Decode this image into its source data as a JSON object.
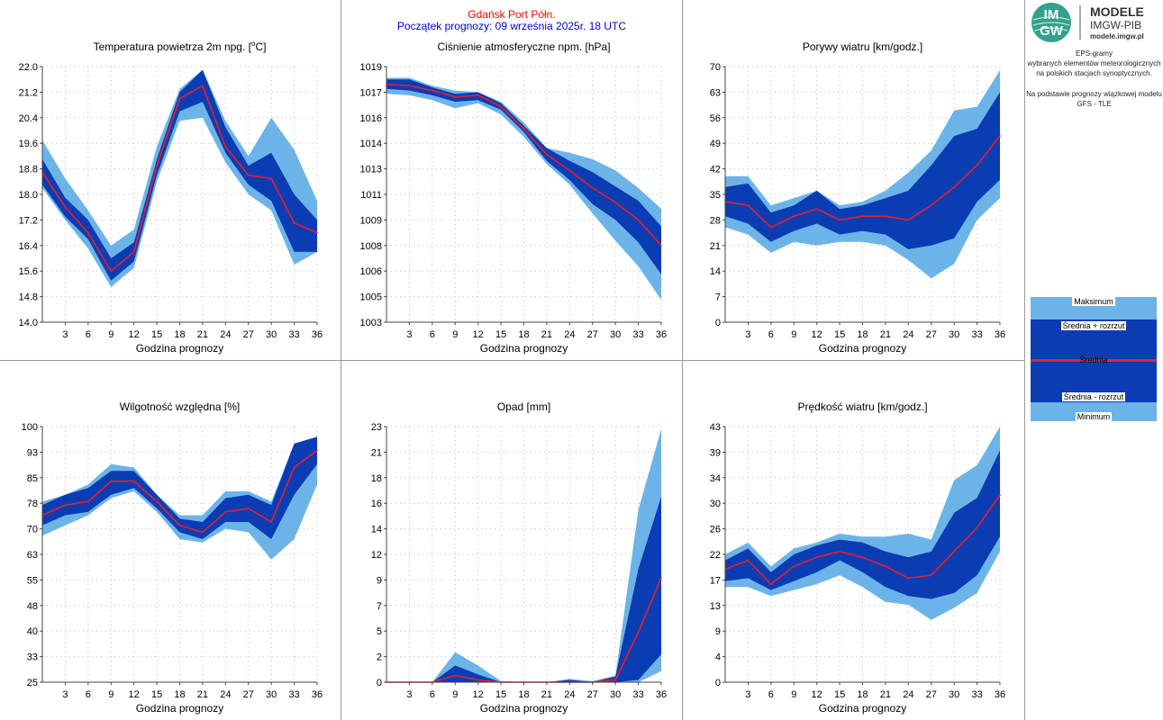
{
  "header": {
    "station": "Gdańsk Port Półn.",
    "forecast_start": "Początek prognozy: 09 września 2025r. 18 UTC",
    "station_color": "#ff0000",
    "forecast_color": "#0000cc"
  },
  "logo": {
    "icon_text_top": "IM",
    "icon_text_bottom": "GW",
    "line1": "MODELE",
    "line2": "IMGW-PIB",
    "line3": "modele.imgw.pl"
  },
  "side_info": {
    "line1": "EPS-gramy",
    "line2": "wybranych elementów meteorologicznych",
    "line3": "na polskich stacjach  synoptycznych.",
    "line4": "Na podstawie prognozy wiązkowej modelu",
    "line5": "GFS - TLE"
  },
  "legend": {
    "max": "Maksimum",
    "mean_plus": "Średnia + rozrzut",
    "mean": "Średnia",
    "mean_minus": "Średnia - rozrzut",
    "min": "Minimum"
  },
  "colors": {
    "outer_band": "#6cb4e8",
    "inner_band": "#0a3cb4",
    "mean_line": "#e8202a",
    "grid": "#bdbdbd"
  },
  "x_axis": {
    "label": "Godzina prognozy",
    "hours": [
      0,
      3,
      6,
      9,
      12,
      15,
      18,
      21,
      24,
      27,
      30,
      33,
      36
    ],
    "tick_labels": [
      "3",
      "6",
      "9",
      "12",
      "15",
      "18",
      "21",
      "24",
      "27",
      "30",
      "33",
      "36"
    ]
  },
  "chart_data": [
    {
      "type": "area",
      "title": "Temperatura powietrza 2m npg. [°C]",
      "title_main": "Temperatura powietrza 2m npg. [",
      "title_sup": "o",
      "title_end": "C]",
      "xlabel": "Godzina prognozy",
      "ylim": [
        14.0,
        22.0
      ],
      "yticks": [
        "22.0",
        "21.2",
        "20.4",
        "19.6",
        "18.8",
        "18.0",
        "17.2",
        "16.4",
        "15.6",
        "14.8",
        "14.0"
      ],
      "max": [
        19.7,
        18.5,
        17.5,
        16.4,
        16.9,
        19.5,
        21.3,
        21.9,
        20.3,
        19.2,
        20.4,
        19.4,
        17.8
      ],
      "mean_plus": [
        19.1,
        17.9,
        17.2,
        16.0,
        16.5,
        19.1,
        21.2,
        21.9,
        20.1,
        18.9,
        19.3,
        18.0,
        17.2
      ],
      "mean": [
        18.7,
        17.6,
        16.8,
        15.6,
        16.2,
        18.9,
        21.0,
        21.4,
        19.5,
        18.6,
        18.5,
        17.1,
        16.8
      ],
      "mean_minus": [
        18.3,
        17.3,
        16.6,
        15.3,
        15.9,
        18.6,
        20.6,
        20.9,
        19.3,
        18.3,
        17.8,
        16.2,
        16.2
      ],
      "min": [
        18.2,
        17.2,
        16.3,
        15.1,
        15.7,
        18.4,
        20.3,
        20.4,
        19.0,
        18.0,
        17.5,
        15.8,
        16.2
      ]
    },
    {
      "type": "area",
      "title": "Ciśnienie atmosferyczne npm. [hPa]",
      "xlabel": "Godzina prognozy",
      "ylim": [
        1003,
        1019
      ],
      "ytick_values": [
        1019,
        1017.4,
        1015.8,
        1014.2,
        1012.6,
        1011,
        1009.4,
        1007.8,
        1006.2,
        1004.6,
        1003
      ],
      "yticks": [
        "1019",
        "1017",
        "1016",
        "1014",
        "1013",
        "1011",
        "1009",
        "1008",
        "1006",
        "1005",
        "1003"
      ],
      "max": [
        1018.3,
        1018.3,
        1017.8,
        1017.5,
        1017.4,
        1016.8,
        1015.5,
        1013.9,
        1013.6,
        1013.2,
        1012.5,
        1011.4,
        1010.1
      ],
      "mean_plus": [
        1018.2,
        1018.2,
        1017.7,
        1017.3,
        1017.4,
        1016.7,
        1015.3,
        1013.9,
        1013.1,
        1012.4,
        1011.5,
        1010.6,
        1009.0
      ],
      "mean": [
        1017.9,
        1017.8,
        1017.5,
        1017.1,
        1017.2,
        1016.5,
        1015.1,
        1013.5,
        1012.5,
        1011.4,
        1010.5,
        1009.4,
        1007.8
      ],
      "mean_minus": [
        1017.6,
        1017.5,
        1017.2,
        1016.8,
        1016.9,
        1016.3,
        1014.9,
        1013.1,
        1011.9,
        1010.4,
        1009.4,
        1008.0,
        1006.0
      ],
      "min": [
        1017.3,
        1017.2,
        1016.9,
        1016.4,
        1016.7,
        1016.0,
        1014.6,
        1012.9,
        1011.6,
        1009.8,
        1008.1,
        1006.5,
        1004.4
      ]
    },
    {
      "type": "area",
      "title": "Porywy wiatru [km/godz.]",
      "xlabel": "Godzina prognozy",
      "ylim": [
        0,
        70
      ],
      "yticks": [
        "70",
        "63",
        "56",
        "49",
        "42",
        "35",
        "28",
        "21",
        "14",
        "7",
        "0"
      ],
      "max": [
        40,
        40,
        32,
        34,
        36,
        32,
        33,
        36,
        41,
        47,
        58,
        59,
        69
      ],
      "mean_plus": [
        37,
        38,
        30,
        32,
        36,
        31,
        32,
        34,
        36,
        43,
        51,
        53,
        63
      ],
      "mean": [
        33,
        32,
        26,
        29,
        31,
        28,
        29,
        29,
        28,
        32,
        37,
        43,
        51
      ],
      "mean_minus": [
        29,
        27,
        22,
        25,
        27,
        24,
        25,
        24,
        20,
        21,
        23,
        33,
        39
      ],
      "min": [
        26,
        24,
        19,
        22,
        21,
        22,
        22,
        21,
        17,
        12,
        16,
        28,
        34
      ]
    },
    {
      "type": "area",
      "title": "Wilgotność względna [%]",
      "xlabel": "Godzina prognozy",
      "ylim": [
        25,
        100
      ],
      "ytick_values": [
        100,
        92.5,
        85,
        77.5,
        70,
        62.5,
        55,
        47.5,
        40,
        32.5,
        25
      ],
      "yticks": [
        "100",
        "93",
        "85",
        "78",
        "70",
        "63",
        "55",
        "48",
        "40",
        "33",
        "25"
      ],
      "max": [
        78,
        80,
        83,
        89,
        88,
        80,
        74,
        74,
        81,
        81,
        78,
        95,
        97
      ],
      "mean_plus": [
        77,
        80,
        82,
        87,
        87,
        80,
        73,
        72,
        79,
        80,
        77,
        95,
        97
      ],
      "mean": [
        74,
        77,
        78,
        84,
        84,
        78,
        71,
        69,
        75,
        76,
        72,
        88,
        93
      ],
      "mean_minus": [
        71,
        74,
        75,
        80,
        82,
        76,
        69,
        67,
        72,
        72,
        67,
        80,
        89
      ],
      "min": [
        68,
        71,
        74,
        79,
        81,
        75,
        67,
        66,
        70,
        69,
        61,
        67,
        83
      ]
    },
    {
      "type": "area",
      "title": "Opad [mm]",
      "xlabel": "Godzina prognozy",
      "ylim": [
        0,
        23
      ],
      "ytick_values": [
        23,
        20.7,
        18.4,
        16.1,
        13.8,
        11.5,
        9.2,
        6.9,
        4.6,
        2.3,
        0
      ],
      "yticks": [
        "23",
        "21",
        "18",
        "16",
        "14",
        "12",
        "9",
        "7",
        "5",
        "2",
        "0"
      ],
      "max": [
        0,
        0,
        0,
        2.7,
        1.5,
        0.1,
        0,
        0,
        0.3,
        0.1,
        0.6,
        15.5,
        22.8
      ],
      "mean_plus": [
        0,
        0,
        0,
        1.5,
        0.7,
        0,
        0,
        0,
        0.2,
        0,
        0.5,
        10.2,
        16.7
      ],
      "mean": [
        0,
        0,
        0,
        0.6,
        0.2,
        0,
        0,
        0,
        0,
        0,
        0.2,
        4.5,
        9.4
      ],
      "mean_minus": [
        0,
        0,
        0,
        0,
        0,
        0,
        0,
        0,
        0,
        0,
        0,
        0.2,
        2.5
      ],
      "min": [
        0,
        0,
        0,
        0,
        0,
        0,
        0,
        0,
        0,
        0,
        0,
        0,
        1.0
      ]
    },
    {
      "type": "area",
      "title": "Prędkość wiatru [km/godz.]",
      "xlabel": "Godzina prognozy",
      "ylim": [
        0,
        43
      ],
      "ytick_values": [
        43,
        38.7,
        34.4,
        30.1,
        25.8,
        21.5,
        17.2,
        12.9,
        8.6,
        4.3,
        0
      ],
      "yticks": [
        "43",
        "39",
        "34",
        "30",
        "26",
        "22",
        "17",
        "13",
        "9",
        "4",
        "0"
      ],
      "max": [
        21.5,
        23.5,
        19.5,
        22.5,
        23.5,
        25,
        24.5,
        24.5,
        25,
        24,
        34,
        36.5,
        43
      ],
      "mean_plus": [
        20.5,
        22.5,
        18.5,
        21.5,
        23,
        24,
        23.5,
        22,
        21,
        22,
        28.5,
        31,
        39
      ],
      "mean": [
        19,
        20.5,
        16.5,
        19.5,
        21,
        22,
        21,
        19.5,
        17.5,
        18,
        22,
        26,
        31.5
      ],
      "mean_minus": [
        17,
        17.5,
        15.5,
        17,
        18.5,
        20.5,
        18.5,
        16,
        14.5,
        14,
        15,
        18,
        24.5
      ],
      "min": [
        16,
        16,
        14.5,
        15.5,
        16.5,
        18,
        16,
        13.5,
        13,
        10.5,
        12.5,
        15,
        22
      ]
    }
  ]
}
